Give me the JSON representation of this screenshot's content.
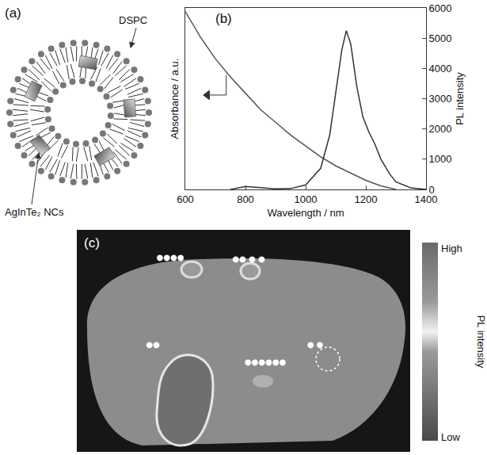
{
  "diagram": {
    "label": "(a)",
    "lipid_label": "DSPC",
    "particle_label": "AgInTe₂ NCs"
  },
  "chart_data": {
    "type": "line",
    "label": "(b)",
    "x_label": "Wavelength / nm",
    "y_label": "Absorbance / a.u.",
    "y2_label": "PL intensity",
    "xlim": [
      600,
      1400
    ],
    "xticks": [
      600,
      800,
      1000,
      1200,
      1400
    ],
    "ylim": [
      0,
      1
    ],
    "yticks": [],
    "y2lim": [
      0,
      6000
    ],
    "y2ticks": [
      0,
      1000,
      2000,
      3000,
      4000,
      5000,
      6000
    ],
    "grid": false,
    "series": [
      {
        "color": "#555555",
        "x": [
          600,
          650,
          700,
          750,
          800,
          850,
          900,
          950,
          1000,
          1050,
          1100,
          1150,
          1200,
          1250,
          1300
        ],
        "values": [
          0.98,
          0.84,
          0.72,
          0.62,
          0.53,
          0.44,
          0.37,
          0.3,
          0.24,
          0.18,
          0.13,
          0.09,
          0.05,
          0.02,
          0.0
        ]
      },
      {
        "color": "#333333",
        "axis": "y2",
        "x": [
          750,
          800,
          850,
          900,
          950,
          1000,
          1050,
          1080,
          1100,
          1120,
          1135,
          1150,
          1170,
          1190,
          1210,
          1230,
          1250,
          1280,
          1300,
          1350,
          1400
        ],
        "values": [
          0,
          100,
          60,
          20,
          30,
          150,
          700,
          1800,
          3200,
          4600,
          5250,
          4800,
          3400,
          2400,
          1900,
          1500,
          1000,
          500,
          250,
          50,
          0
        ]
      }
    ]
  },
  "image": {
    "label": "(c)",
    "annotations": [
      "●●●●",
      "●● ● ●",
      "●●",
      "●●●●●●",
      "● ●"
    ],
    "colorbar": {
      "title": "PL intensity",
      "high": "High",
      "low": "Low"
    }
  }
}
